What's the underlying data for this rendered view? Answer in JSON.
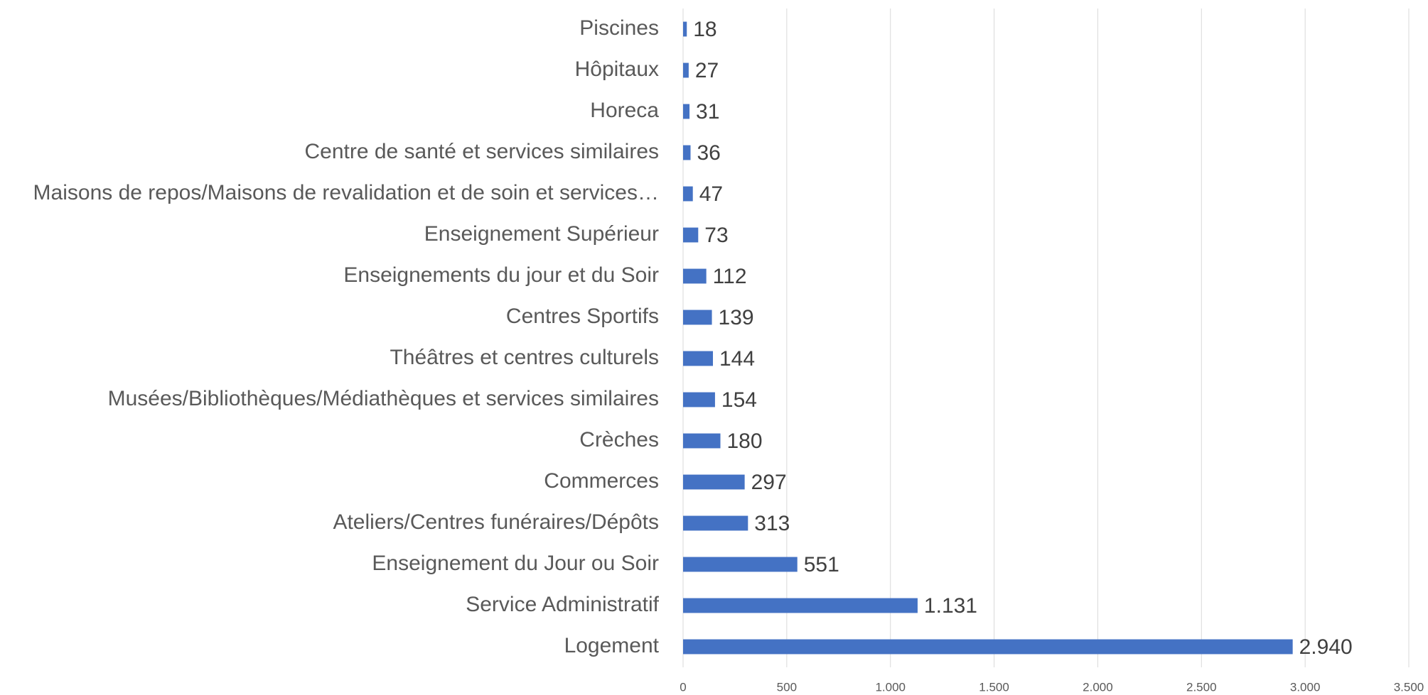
{
  "chart_data": {
    "type": "hbar",
    "categories": [
      "Piscines",
      "Hôpitaux",
      "Horeca",
      "Centre de santé et services similaires",
      "Maisons de repos/Maisons de revalidation et de soin et services…",
      "Enseignement Supérieur",
      "Enseignements du jour et du Soir",
      "Centres Sportifs",
      "Théâtres et centres culturels",
      "Musées/Bibliothèques/Médiathèques et services similaires",
      "Crèches",
      "Commerces",
      "Ateliers/Centres funéraires/Dépôts",
      "Enseignement du Jour ou Soir",
      "Service Administratif",
      "Logement"
    ],
    "values": [
      18,
      27,
      31,
      36,
      47,
      73,
      112,
      139,
      144,
      154,
      180,
      297,
      313,
      551,
      1131,
      2940
    ],
    "value_labels": [
      "18",
      "27",
      "31",
      "36",
      "47",
      "73",
      "112",
      "139",
      "144",
      "154",
      "180",
      "297",
      "313",
      "551",
      "1.131",
      "2.940"
    ],
    "color": "#4472c4",
    "xlim": [
      0,
      3500
    ],
    "xticks": [
      0,
      500,
      {
        "value": 1000,
        "label": "1.000"
      },
      {
        "value": 1500,
        "label": "1.500"
      },
      {
        "value": 2000,
        "label": "2.000"
      },
      {
        "value": 2500,
        "label": "2.500"
      },
      {
        "value": 3000,
        "label": "3.000"
      },
      {
        "value": 3500,
        "label": "3.500"
      }
    ],
    "grid": true
  }
}
